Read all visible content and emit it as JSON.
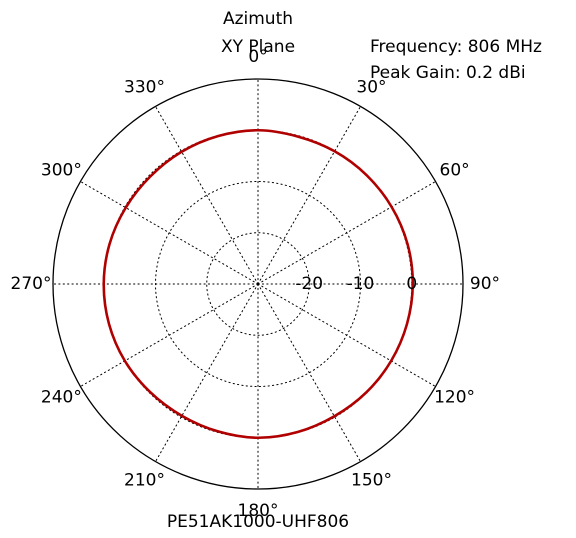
{
  "chart_data": {
    "type": "polar-line",
    "title_lines": [
      "Azimuth",
      "XY Plane"
    ],
    "info_lines": [
      "Frequency: 806 MHz",
      "Peak Gain: 0.2 dBi"
    ],
    "footer": "PE51AK1000-UHF806",
    "angle_ticks": [
      {
        "deg": 0,
        "label": "0°"
      },
      {
        "deg": 30,
        "label": "30°"
      },
      {
        "deg": 60,
        "label": "60°"
      },
      {
        "deg": 90,
        "label": "90°"
      },
      {
        "deg": 120,
        "label": "120°"
      },
      {
        "deg": 150,
        "label": "150°"
      },
      {
        "deg": 180,
        "label": "180°"
      },
      {
        "deg": 210,
        "label": "210°"
      },
      {
        "deg": 240,
        "label": "240°"
      },
      {
        "deg": 270,
        "label": "270°"
      },
      {
        "deg": 300,
        "label": "300°"
      },
      {
        "deg": 330,
        "label": "330°"
      }
    ],
    "radial_ticks": [
      {
        "value": -20,
        "label": "-20"
      },
      {
        "value": -10,
        "label": "-10"
      },
      {
        "value": 0,
        "label": "0"
      }
    ],
    "r_min_db": -30,
    "r_max_db": 10,
    "grid": true,
    "grid_style": "dotted",
    "series": [
      {
        "color": "#b00000",
        "angles_deg": [
          0,
          15,
          30,
          45,
          60,
          75,
          90,
          105,
          120,
          135,
          150,
          165,
          180,
          195,
          210,
          225,
          240,
          255,
          270,
          285,
          300,
          315,
          330,
          345
        ],
        "gain_db": [
          0.0,
          -0.2,
          -0.1,
          0.0,
          0.1,
          0.2,
          0.2,
          0.1,
          0.0,
          -0.1,
          -0.2,
          -0.1,
          0.0,
          -0.2,
          -0.3,
          -0.2,
          0.0,
          0.1,
          0.1,
          0.0,
          -0.2,
          -0.3,
          -0.2,
          -0.1
        ]
      }
    ]
  }
}
